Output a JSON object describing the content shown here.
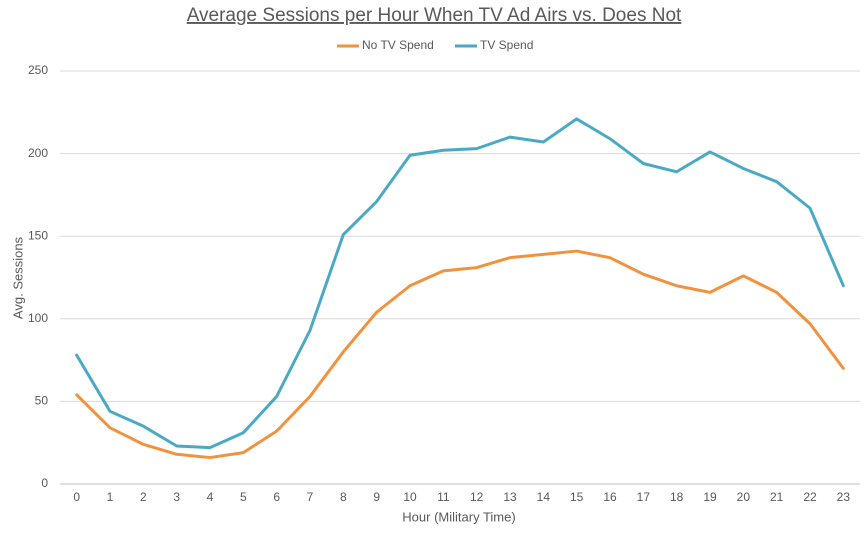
{
  "chart_data": {
    "type": "line",
    "title": "Average Sessions per Hour When TV Ad Airs vs. Does Not",
    "x_label": "Hour (Military Time)",
    "y_label": "Avg. Sessions",
    "categories": [
      "0",
      "1",
      "2",
      "3",
      "4",
      "5",
      "6",
      "7",
      "8",
      "9",
      "10",
      "11",
      "12",
      "13",
      "14",
      "15",
      "16",
      "17",
      "18",
      "19",
      "20",
      "21",
      "22",
      "23"
    ],
    "series": [
      {
        "name": "No TV Spend",
        "color": "#f0923e",
        "values": [
          54,
          34,
          24,
          18,
          16,
          19,
          32,
          53,
          80,
          104,
          120,
          129,
          131,
          137,
          139,
          141,
          137,
          127,
          120,
          116,
          126,
          116,
          97,
          70
        ]
      },
      {
        "name": "TV Spend",
        "color": "#4aaac3",
        "values": [
          78,
          44,
          35,
          23,
          22,
          31,
          53,
          93,
          151,
          171,
          199,
          202,
          203,
          210,
          207,
          221,
          209,
          194,
          189,
          201,
          191,
          183,
          167,
          120
        ]
      }
    ],
    "ylim": [
      0,
      250
    ],
    "yticks": [
      0,
      50,
      100,
      150,
      200,
      250
    ],
    "grid": true,
    "legend": "top"
  }
}
